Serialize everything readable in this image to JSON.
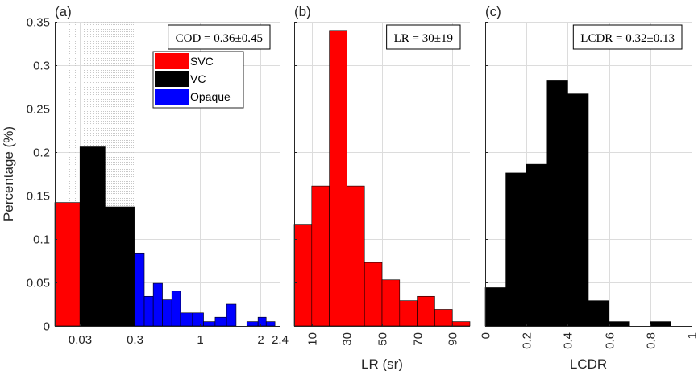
{
  "chart_data": [
    {
      "type": "bar",
      "panel_label": "(a)",
      "xlabel": "",
      "ylabel": "Percentage (%)",
      "ylim": [
        0,
        0.35
      ],
      "yticks": [
        0,
        0.05,
        0.1,
        0.15,
        0.2,
        0.25,
        0.3,
        0.35
      ],
      "ytick_labels": [
        "0",
        "0.05",
        "0.1",
        "0.15",
        "0.2",
        "0.25",
        "0.3",
        "0.35"
      ],
      "xscale": "sqrt",
      "xlim": [
        0,
        2.4
      ],
      "xticks": [
        0.03,
        0.3,
        1,
        2,
        2.4
      ],
      "xtick_labels": [
        "0.03",
        "0.3",
        "1",
        "2",
        "2.4"
      ],
      "annotation": "COD = 0.36±0.45",
      "legend_position": "top-center",
      "series": [
        {
          "name": "SVC",
          "color": "#ff0000",
          "bins": [
            [
              0,
              0.03,
              0.142
            ]
          ]
        },
        {
          "name": "VC",
          "color": "#000000",
          "bins": [
            [
              0.03,
              0.12,
              0.206
            ],
            [
              0.12,
              0.3,
              0.137
            ]
          ]
        },
        {
          "name": "Opaque",
          "color": "#0000ff",
          "bins": [
            [
              0.3,
              0.38,
              0.084
            ],
            [
              0.38,
              0.46,
              0.034
            ],
            [
              0.46,
              0.55,
              0.049
            ],
            [
              0.55,
              0.65,
              0.03
            ],
            [
              0.65,
              0.75,
              0.04
            ],
            [
              0.75,
              0.9,
              0.015
            ],
            [
              0.9,
              1.05,
              0.015
            ],
            [
              1.05,
              1.22,
              0.005
            ],
            [
              1.22,
              1.4,
              0.01
            ],
            [
              1.4,
              1.56,
              0.025
            ],
            [
              1.56,
              1.75,
              0.0
            ],
            [
              1.75,
              1.96,
              0.005
            ],
            [
              1.96,
              2.12,
              0.01
            ],
            [
              2.12,
              2.3,
              0.005
            ]
          ]
        }
      ]
    },
    {
      "type": "bar",
      "panel_label": "(b)",
      "xlabel": "LR (sr)",
      "ylim": [
        0,
        0.35
      ],
      "xlim": [
        0,
        100
      ],
      "xticks": [
        10,
        30,
        50,
        70,
        90
      ],
      "xtick_labels": [
        "10",
        "30",
        "50",
        "70",
        "90"
      ],
      "annotation": "LR = 30±19",
      "color": "#ff0000",
      "bin_edges": [
        0,
        10,
        20,
        30,
        40,
        50,
        60,
        70,
        80,
        90,
        100
      ],
      "values": [
        0.117,
        0.161,
        0.34,
        0.161,
        0.073,
        0.053,
        0.029,
        0.034,
        0.019,
        0.005
      ]
    },
    {
      "type": "bar",
      "panel_label": "(c)",
      "xlabel": "LCDR",
      "ylim": [
        0,
        0.35
      ],
      "xlim": [
        0,
        1
      ],
      "xticks": [
        0,
        0.2,
        0.4,
        0.6,
        0.8,
        1
      ],
      "xtick_labels": [
        "0",
        "0.2",
        "0.4",
        "0.6",
        "0.8",
        "1"
      ],
      "annotation": "LCDR = 0.32±0.13",
      "color": "#000000",
      "bin_edges": [
        0,
        0.1,
        0.2,
        0.3,
        0.4,
        0.5,
        0.6,
        0.7,
        0.8,
        0.9
      ],
      "values": [
        0.044,
        0.176,
        0.186,
        0.282,
        0.267,
        0.029,
        0.005,
        0.0,
        0.005
      ]
    }
  ]
}
